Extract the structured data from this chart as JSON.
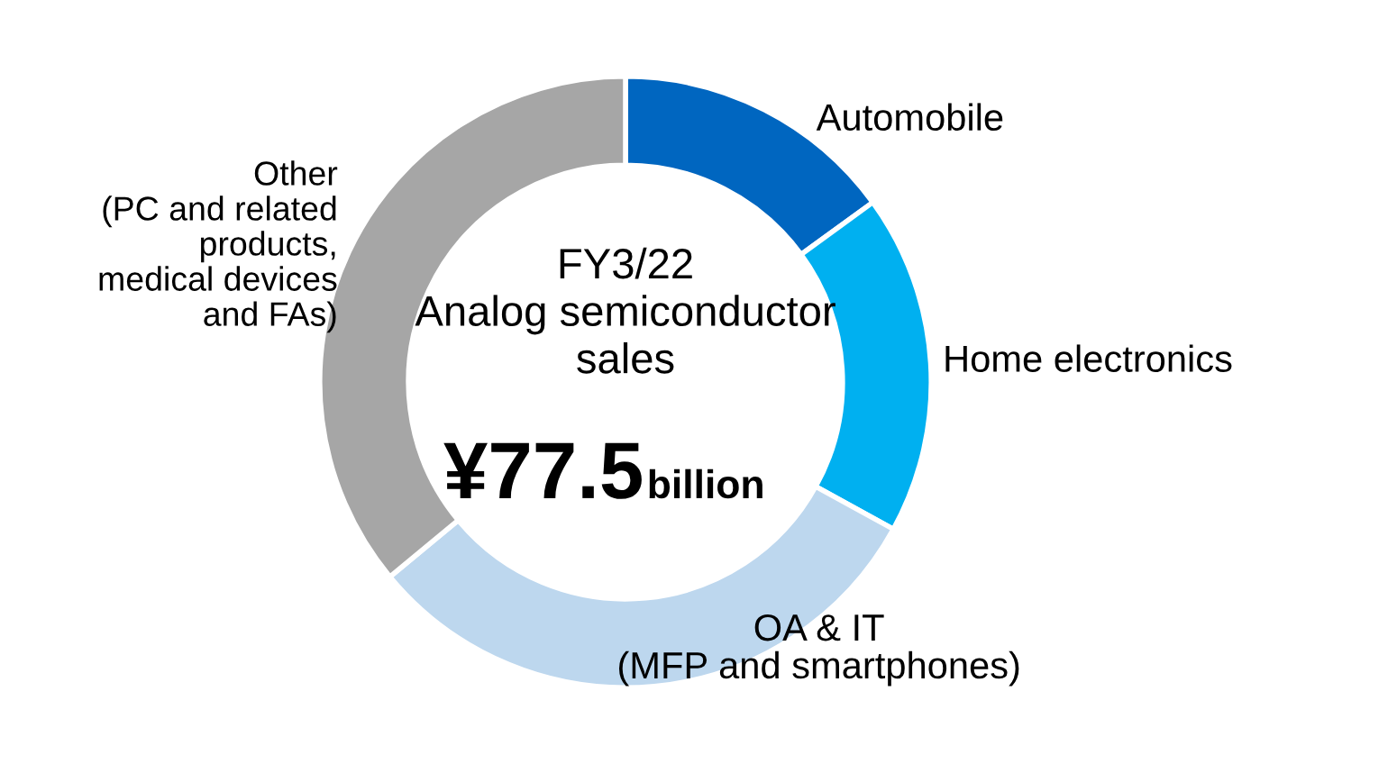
{
  "chart_data": {
    "type": "donut",
    "categories": [
      "Automobile",
      "Home electronics",
      "OA & IT\n(MFP and smartphones)",
      "Other\n(PC and related\nproducts,\nmedical devices\nand FAs)"
    ],
    "values": [
      15,
      18,
      31,
      36
    ],
    "colors": [
      "#0066c0",
      "#00b0f0",
      "#bdd7ee",
      "#a6a6a6"
    ],
    "annotations": [
      "FY3/22\nAnalog semiconductor\nsales",
      "¥77.5",
      "billion"
    ],
    "legend": false
  }
}
